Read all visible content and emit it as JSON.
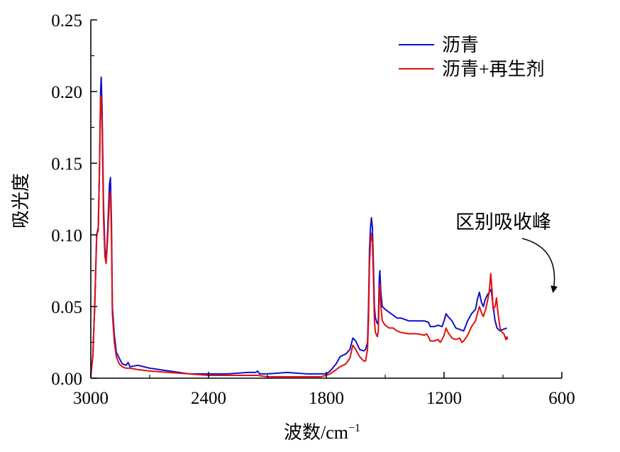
{
  "chart_data": {
    "type": "line",
    "xlabel": "波数/cm",
    "xlabel_superscript": "−1",
    "ylabel": "吸光度",
    "xlim": [
      3000,
      600
    ],
    "ylim": [
      0,
      0.25
    ],
    "x_reversed": true,
    "x_ticks": [
      3000,
      2400,
      1800,
      1200,
      600
    ],
    "x_tick_labels": [
      "3000",
      "2400",
      "1800",
      "1200",
      "600"
    ],
    "y_ticks": [
      0,
      0.05,
      0.1,
      0.15,
      0.2,
      0.25
    ],
    "y_tick_labels": [
      "0.00",
      "0.05",
      "0.10",
      "0.15",
      "0.20",
      "0.25"
    ],
    "grid": false,
    "legend_position": "top-right",
    "series": [
      {
        "name": "沥青",
        "color": "#1010d0",
        "points": [
          [
            3000,
            0.002
          ],
          [
            2990,
            0.015
          ],
          [
            2980,
            0.05
          ],
          [
            2970,
            0.1
          ],
          [
            2962,
            0.105
          ],
          [
            2955,
            0.15
          ],
          [
            2950,
            0.2
          ],
          [
            2947,
            0.21
          ],
          [
            2943,
            0.19
          ],
          [
            2935,
            0.12
          ],
          [
            2928,
            0.09
          ],
          [
            2922,
            0.082
          ],
          [
            2915,
            0.1
          ],
          [
            2905,
            0.135
          ],
          [
            2900,
            0.14
          ],
          [
            2895,
            0.11
          ],
          [
            2890,
            0.05
          ],
          [
            2880,
            0.03
          ],
          [
            2870,
            0.018
          ],
          [
            2855,
            0.014
          ],
          [
            2840,
            0.01
          ],
          [
            2820,
            0.009
          ],
          [
            2810,
            0.011
          ],
          [
            2800,
            0.008
          ],
          [
            2760,
            0.009
          ],
          [
            2700,
            0.007
          ],
          [
            2600,
            0.005
          ],
          [
            2500,
            0.003
          ],
          [
            2400,
            0.003
          ],
          [
            2300,
            0.003
          ],
          [
            2200,
            0.004
          ],
          [
            2160,
            0.004
          ],
          [
            2150,
            0.005
          ],
          [
            2140,
            0.003
          ],
          [
            2100,
            0.003
          ],
          [
            2000,
            0.004
          ],
          [
            1900,
            0.003
          ],
          [
            1830,
            0.003
          ],
          [
            1800,
            0.003
          ],
          [
            1780,
            0.005
          ],
          [
            1750,
            0.01
          ],
          [
            1730,
            0.015
          ],
          [
            1700,
            0.017
          ],
          [
            1680,
            0.02
          ],
          [
            1665,
            0.028
          ],
          [
            1650,
            0.026
          ],
          [
            1630,
            0.02
          ],
          [
            1610,
            0.019
          ],
          [
            1600,
            0.02
          ],
          [
            1590,
            0.025
          ],
          [
            1585,
            0.05
          ],
          [
            1580,
            0.09
          ],
          [
            1575,
            0.105
          ],
          [
            1570,
            0.112
          ],
          [
            1565,
            0.105
          ],
          [
            1560,
            0.08
          ],
          [
            1555,
            0.05
          ],
          [
            1550,
            0.042
          ],
          [
            1540,
            0.038
          ],
          [
            1535,
            0.04
          ],
          [
            1530,
            0.07
          ],
          [
            1527,
            0.075
          ],
          [
            1522,
            0.06
          ],
          [
            1515,
            0.05
          ],
          [
            1500,
            0.048
          ],
          [
            1480,
            0.046
          ],
          [
            1460,
            0.044
          ],
          [
            1440,
            0.042
          ],
          [
            1420,
            0.042
          ],
          [
            1380,
            0.04
          ],
          [
            1340,
            0.04
          ],
          [
            1300,
            0.04
          ],
          [
            1280,
            0.039
          ],
          [
            1270,
            0.036
          ],
          [
            1250,
            0.036
          ],
          [
            1230,
            0.037
          ],
          [
            1210,
            0.036
          ],
          [
            1200,
            0.04
          ],
          [
            1190,
            0.045
          ],
          [
            1180,
            0.043
          ],
          [
            1160,
            0.04
          ],
          [
            1140,
            0.035
          ],
          [
            1120,
            0.034
          ],
          [
            1100,
            0.033
          ],
          [
            1080,
            0.04
          ],
          [
            1060,
            0.045
          ],
          [
            1040,
            0.048
          ],
          [
            1030,
            0.055
          ],
          [
            1020,
            0.06
          ],
          [
            1010,
            0.053
          ],
          [
            1000,
            0.05
          ],
          [
            990,
            0.055
          ],
          [
            980,
            0.058
          ],
          [
            970,
            0.06
          ],
          [
            960,
            0.062
          ],
          [
            950,
            0.05
          ],
          [
            940,
            0.04
          ],
          [
            930,
            0.035
          ],
          [
            915,
            0.033
          ],
          [
            900,
            0.034
          ],
          [
            880,
            0.035
          ]
        ]
      },
      {
        "name": "沥青+再生剂",
        "color": "#e01010",
        "points": [
          [
            3000,
            0.002
          ],
          [
            2990,
            0.015
          ],
          [
            2980,
            0.05
          ],
          [
            2970,
            0.1
          ],
          [
            2962,
            0.103
          ],
          [
            2955,
            0.15
          ],
          [
            2950,
            0.197
          ],
          [
            2947,
            0.195
          ],
          [
            2943,
            0.18
          ],
          [
            2935,
            0.11
          ],
          [
            2928,
            0.085
          ],
          [
            2922,
            0.08
          ],
          [
            2915,
            0.095
          ],
          [
            2905,
            0.125
          ],
          [
            2900,
            0.13
          ],
          [
            2895,
            0.1
          ],
          [
            2890,
            0.045
          ],
          [
            2880,
            0.025
          ],
          [
            2870,
            0.015
          ],
          [
            2855,
            0.01
          ],
          [
            2840,
            0.008
          ],
          [
            2820,
            0.007
          ],
          [
            2800,
            0.007
          ],
          [
            2760,
            0.006
          ],
          [
            2700,
            0.005
          ],
          [
            2600,
            0.004
          ],
          [
            2500,
            0.003
          ],
          [
            2400,
            0.002
          ],
          [
            2300,
            0.002
          ],
          [
            2200,
            0.002
          ],
          [
            2150,
            0.002
          ],
          [
            2100,
            0.001
          ],
          [
            2000,
            0.001
          ],
          [
            1900,
            0.001
          ],
          [
            1830,
            0.001
          ],
          [
            1800,
            0.002
          ],
          [
            1780,
            0.003
          ],
          [
            1750,
            0.006
          ],
          [
            1730,
            0.008
          ],
          [
            1700,
            0.01
          ],
          [
            1680,
            0.014
          ],
          [
            1665,
            0.023
          ],
          [
            1650,
            0.02
          ],
          [
            1630,
            0.015
          ],
          [
            1610,
            0.012
          ],
          [
            1600,
            0.012
          ],
          [
            1590,
            0.02
          ],
          [
            1585,
            0.04
          ],
          [
            1580,
            0.08
          ],
          [
            1575,
            0.095
          ],
          [
            1570,
            0.101
          ],
          [
            1565,
            0.095
          ],
          [
            1560,
            0.07
          ],
          [
            1555,
            0.04
          ],
          [
            1550,
            0.032
          ],
          [
            1540,
            0.029
          ],
          [
            1535,
            0.033
          ],
          [
            1530,
            0.06
          ],
          [
            1527,
            0.066
          ],
          [
            1522,
            0.05
          ],
          [
            1515,
            0.04
          ],
          [
            1500,
            0.037
          ],
          [
            1480,
            0.035
          ],
          [
            1460,
            0.035
          ],
          [
            1440,
            0.033
          ],
          [
            1420,
            0.032
          ],
          [
            1380,
            0.031
          ],
          [
            1340,
            0.031
          ],
          [
            1300,
            0.03
          ],
          [
            1290,
            0.031
          ],
          [
            1280,
            0.029
          ],
          [
            1270,
            0.026
          ],
          [
            1250,
            0.026
          ],
          [
            1230,
            0.027
          ],
          [
            1220,
            0.025
          ],
          [
            1210,
            0.027
          ],
          [
            1200,
            0.03
          ],
          [
            1190,
            0.035
          ],
          [
            1180,
            0.032
          ],
          [
            1160,
            0.028
          ],
          [
            1140,
            0.027
          ],
          [
            1120,
            0.028
          ],
          [
            1110,
            0.025
          ],
          [
            1100,
            0.026
          ],
          [
            1080,
            0.03
          ],
          [
            1060,
            0.036
          ],
          [
            1040,
            0.04
          ],
          [
            1030,
            0.045
          ],
          [
            1020,
            0.05
          ],
          [
            1010,
            0.046
          ],
          [
            1000,
            0.043
          ],
          [
            990,
            0.047
          ],
          [
            980,
            0.053
          ],
          [
            970,
            0.06
          ],
          [
            962,
            0.073
          ],
          [
            955,
            0.06
          ],
          [
            950,
            0.048
          ],
          [
            940,
            0.05
          ],
          [
            933,
            0.056
          ],
          [
            925,
            0.045
          ],
          [
            915,
            0.035
          ],
          [
            905,
            0.032
          ],
          [
            895,
            0.031
          ],
          [
            885,
            0.027
          ],
          [
            880,
            0.029
          ],
          [
            877,
            0.027
          ]
        ]
      }
    ],
    "annotation": {
      "text": "区别吸收峰",
      "arrow_target_x": 930,
      "arrow_target_y": 0.057
    }
  }
}
